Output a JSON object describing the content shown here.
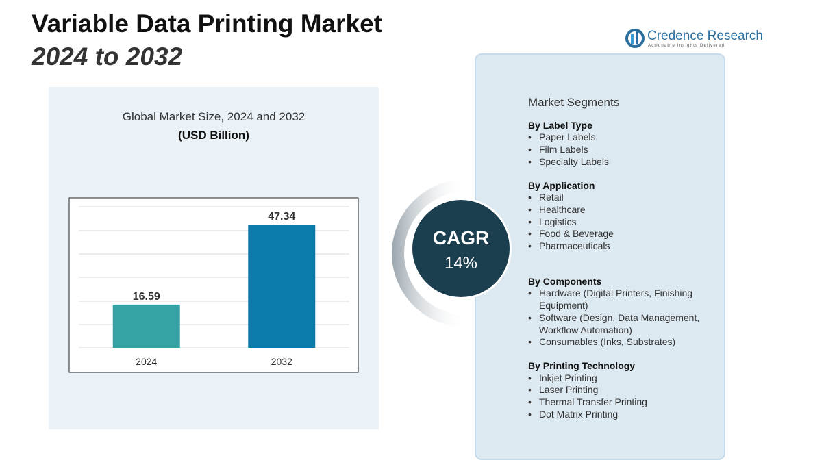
{
  "header": {
    "title": "Variable Data Printing Market",
    "subtitle": "2024 to 2032"
  },
  "logo": {
    "name": "Credence Research",
    "tagline": "Actionable Insights Delivered"
  },
  "chart_data": {
    "type": "bar",
    "title": "Global Market Size, 2024 and 2032",
    "subtitle": "(USD Billion)",
    "categories": [
      "2024",
      "2032"
    ],
    "values": [
      16.59,
      47.34
    ],
    "colors": [
      "#35a3a3",
      "#0a7cac"
    ]
  },
  "cagr": {
    "label": "CAGR",
    "value": "14%"
  },
  "segments": {
    "title": "Market Segments",
    "groups": [
      {
        "name": "By Label Type",
        "items": [
          "Paper Labels",
          "Film Labels",
          "Specialty Labels"
        ]
      },
      {
        "name": "By Application",
        "items": [
          "Retail",
          "Healthcare",
          "Logistics",
          "Food & Beverage",
          "Pharmaceuticals"
        ]
      },
      {
        "name": "By Components",
        "items": [
          "Hardware (Digital Printers, Finishing Equipment)",
          "Software (Design, Data Management, Workflow Automation)",
          "Consumables (Inks, Substrates)"
        ]
      },
      {
        "name": "By Printing Technology",
        "items": [
          "Inkjet Printing",
          "Laser Printing",
          "Thermal Transfer Printing",
          "Dot Matrix Printing"
        ]
      }
    ]
  }
}
